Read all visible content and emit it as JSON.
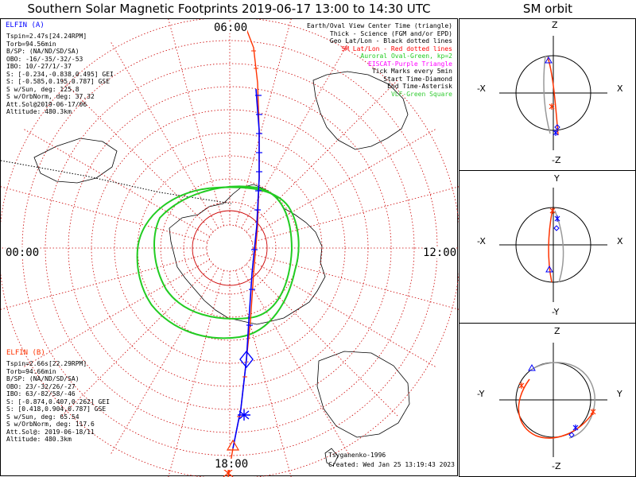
{
  "title": "Southern Solar Magnetic Footprints 2019-06-17 13:00 to 14:30 UTC",
  "orbit_title": "SM orbit",
  "colors": {
    "elfin_a": "#0000ff",
    "elfin_b": "#ff3300",
    "sm_track": "#ff3300",
    "auroral_oval": "#22cc22",
    "grid": "#cc0000",
    "eiscat": "#ff00ff",
    "vlf": "#33cc33"
  },
  "hour_labels": {
    "top": "06:00",
    "left": "00:00",
    "right": "12:00",
    "bottom": "18:00"
  },
  "legend": [
    {
      "text": "Earth/Oval View Center Time (triangle)",
      "color": "#000000"
    },
    {
      "text": "Thick - Science (FGM and/or EPD)",
      "color": "#000000"
    },
    {
      "text": "Geo Lat/Lon - Black dotted lines",
      "color": "#000000"
    },
    {
      "text": "SM Lat/Lon - Red dotted lines",
      "color": "#ff0000"
    },
    {
      "text": "Auroral Oval-Green, kp=2",
      "color": "#22cc22"
    },
    {
      "text": "EISCAT-Purple Triangle",
      "color": "#ff00ff"
    },
    {
      "text": "Tick Marks every 5min",
      "color": "#000000"
    },
    {
      "text": "Start Time-Diamond",
      "color": "#000000"
    },
    {
      "text": "End Time-Asterisk",
      "color": "#000000"
    },
    {
      "text": "VLF-Green Square",
      "color": "#33cc33"
    }
  ],
  "elfin_a": {
    "label": "ELFIN (A)",
    "lines": [
      "Tspin=2.47s[24.24RPM]",
      "Torb=94.56min",
      "B/SP: (NA/ND/SD/SA)",
      "OBO: -16/-35/-32/-53",
      "IBO: 10/-27/1/-37",
      "S: [-0.234,-0.838,0.495] GEI",
      "S: [-0.585,0.195,0.787] GSE",
      "S w/Sun, deg: 125.8",
      "S w/OrbNorm, deg: 37.32",
      "Att.Sol@2019-06-17/06",
      "Altitude: 480.3km"
    ]
  },
  "elfin_b": {
    "label": "ELFIN (B)",
    "lines": [
      "Tspin=2.66s[22.29RPM]",
      "Torb=94.66min",
      "B/SP: (NA/ND/SD/SA)",
      "OBO: 23/-32/26/-27",
      "IBO: 63/-82/58/-46",
      "S: [-0.874,0.407,0.262] GEI",
      "S: [0.418,0.904,0.787] GSE",
      "S w/Sun, deg: 65.54",
      "S w/OrbNorm, deg: 117.6",
      "Att.Sol@: 2019-06-18/11",
      "Altitude: 480.3km"
    ]
  },
  "footer": {
    "author": "Tsyganenko-1996",
    "created": "Created: Wed Jan 25 13:19:43 2023"
  },
  "orbit_panels": [
    {
      "name": "xz",
      "top": "Z",
      "bottom": "-Z",
      "left": "-X",
      "right": "X"
    },
    {
      "name": "xy",
      "top": "Y",
      "bottom": "-Y",
      "left": "-X",
      "right": "X"
    },
    {
      "name": "yz",
      "top": "Z",
      "bottom": "-Z",
      "left": "-Y",
      "right": "Y"
    }
  ]
}
